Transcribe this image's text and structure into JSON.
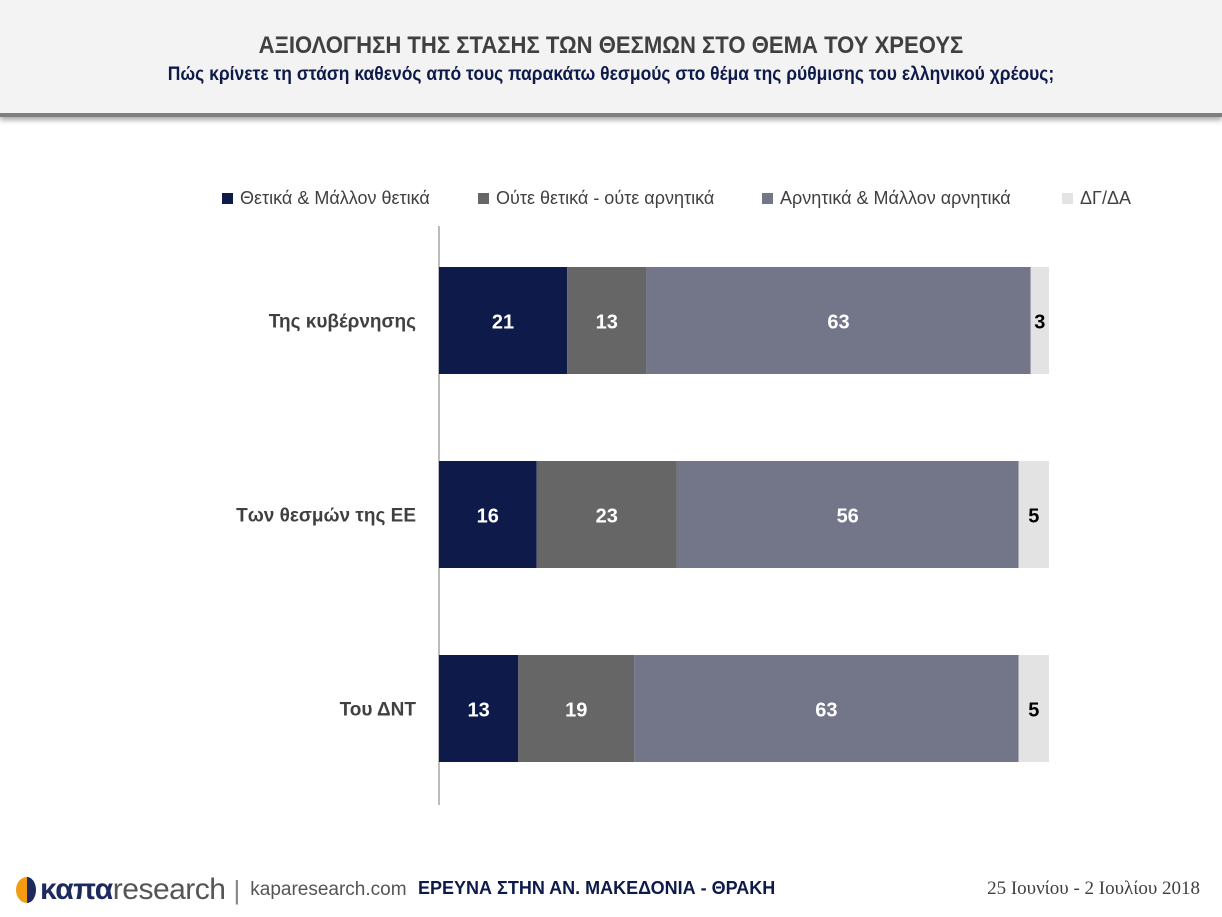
{
  "header": {
    "title": "ΑΞΙΟΛΟΓΗΣΗ ΤΗΣ ΣΤΑΣΗΣ ΤΩΝ ΘΕΣΜΩΝ ΣΤΟ ΘΕΜΑ ΤΟΥ ΧΡΕΟΥΣ",
    "subtitle": "Πώς κρίνετε τη στάση καθενός από τους παρακάτω θεσμούς στο θέμα της ρύθμισης του ελληνικού χρέους;"
  },
  "chart_data": {
    "type": "bar",
    "orientation": "horizontal",
    "stacked": true,
    "categories": [
      "Της κυβέρνησης",
      "Των θεσμών της ΕΕ",
      "Του ΔΝΤ"
    ],
    "series": [
      {
        "name": "Θετικά & Μάλλον θετικά",
        "color": "#0d1a4a",
        "values": [
          21,
          16,
          13
        ]
      },
      {
        "name": "Ούτε θετικά - ούτε αρνητικά",
        "color": "#666666",
        "values": [
          13,
          23,
          19
        ]
      },
      {
        "name": "Αρνητικά & Μάλλον αρνητικά",
        "color": "#737589",
        "values": [
          63,
          56,
          63
        ]
      },
      {
        "name": "ΔΓ/ΔΑ",
        "color": "#e3e3e3",
        "values": [
          3,
          5,
          5
        ]
      }
    ],
    "xlim": [
      0,
      100
    ],
    "legend_position": "top",
    "grid": false
  },
  "footer": {
    "logo_bold": "καπα",
    "logo_rest": "research",
    "separator": "|",
    "url": "kaparesearch.com",
    "survey": "ΕΡΕΥΝΑ ΣΤΗΝ ΑΝ. ΜΑΚΕΔΟΝΙΑ - ΘΡΑΚΗ",
    "dates": "25 Ιουνίου - 2 Ιουλίου 2018"
  }
}
